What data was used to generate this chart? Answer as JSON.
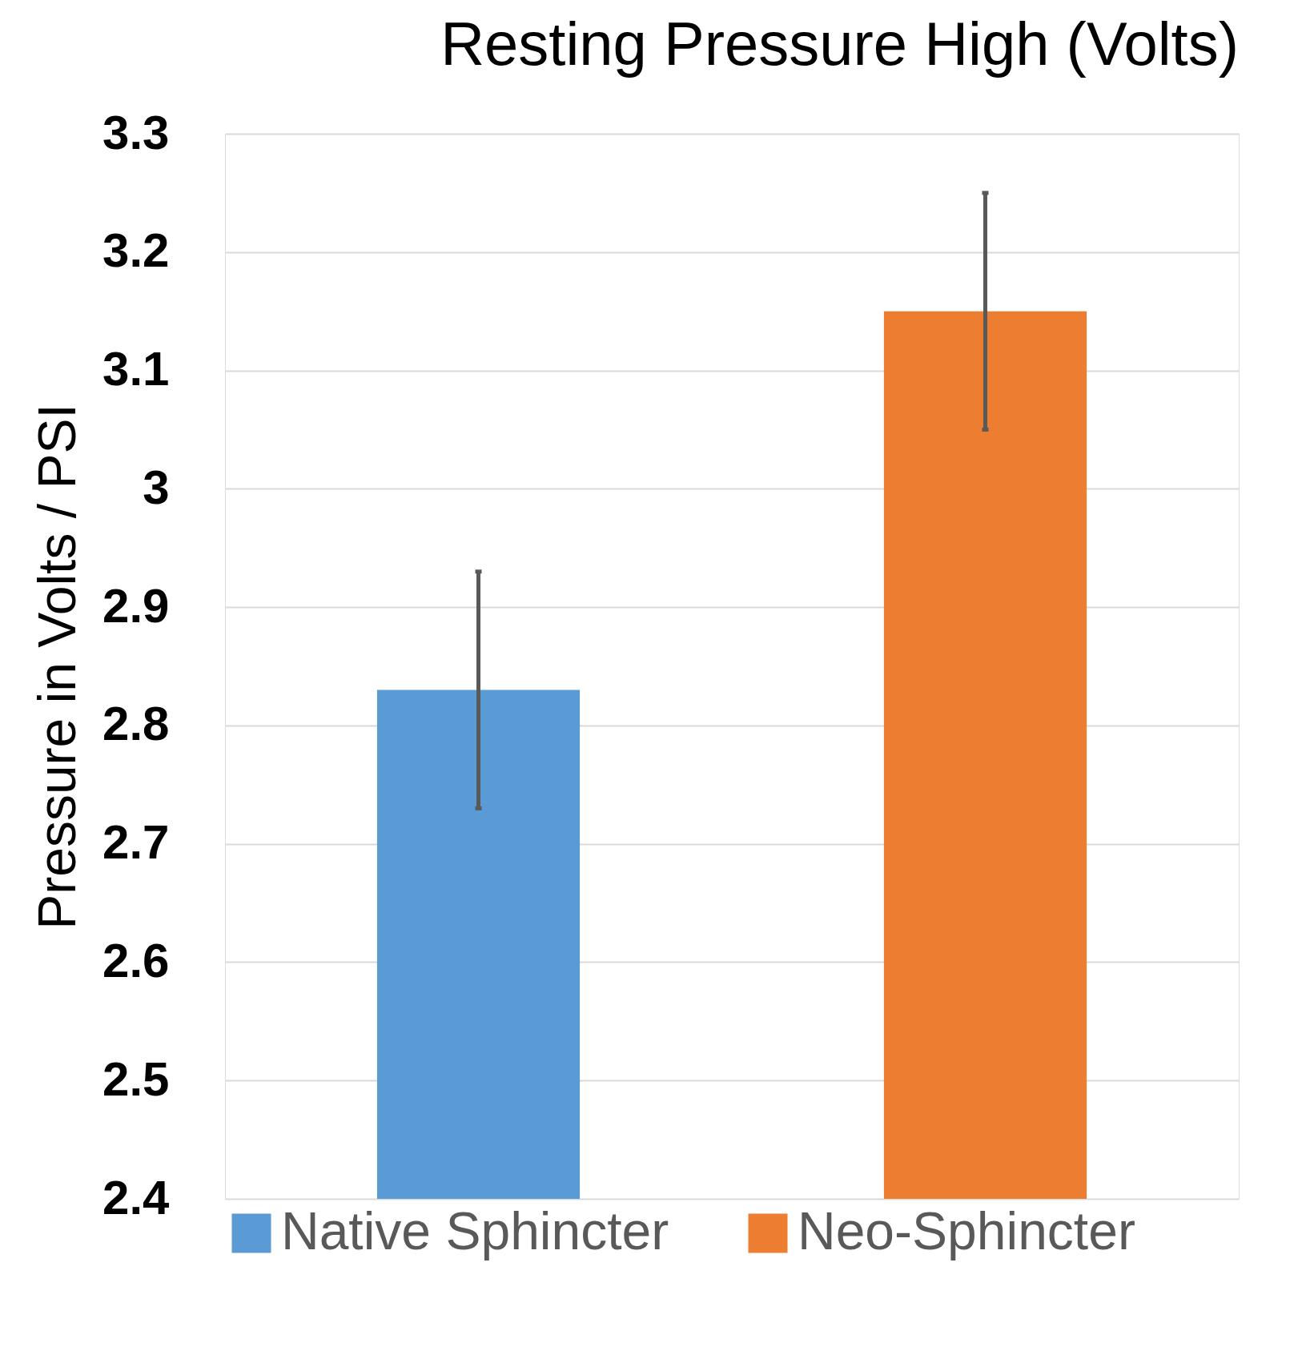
{
  "chart_data": {
    "type": "bar",
    "title": "Resting Pressure High (Volts)",
    "ylabel": "Pressure in Volts / PSI",
    "categories": [
      null
    ],
    "series": [
      {
        "name": "Native Sphincter",
        "color": "#5b9bd5",
        "values": [
          2.83
        ],
        "errors": [
          0.1
        ]
      },
      {
        "name": "Neo-Sphincter",
        "color": "#ed7d31",
        "values": [
          3.15
        ],
        "errors": [
          0.1
        ]
      }
    ],
    "ylim": [
      2.4,
      3.3
    ],
    "yticks": [
      2.4,
      2.5,
      2.6,
      2.7,
      2.8,
      2.9,
      3,
      3.1,
      3.2,
      3.3
    ],
    "grid": "y",
    "legend": "bottom"
  }
}
